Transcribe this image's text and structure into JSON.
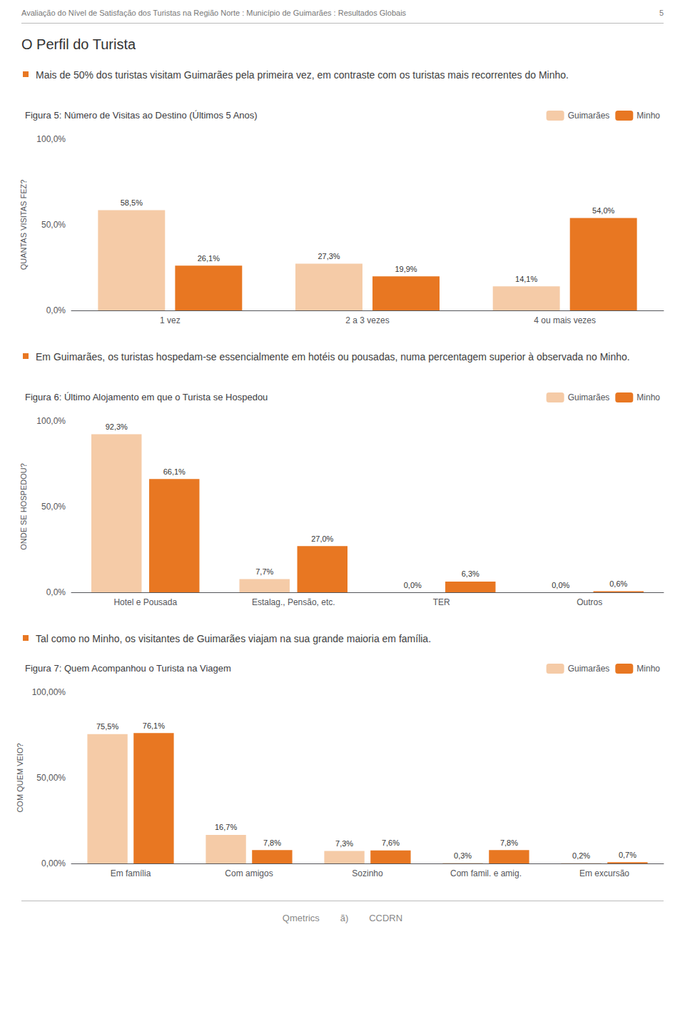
{
  "chart_data": [
    {
      "type": "bar",
      "title": "Figura 5: Número de Visitas ao Destino (Últimos 5 Anos)",
      "ylabel": "QUANTAS VISITAS FEZ?",
      "annotations": [
        "Avaliação do Nível de Satisfação dos Turistas na Região Norte : Município de Guimarães : Resultados Globais",
        "5",
        "O Perfil do Turista",
        "Mais de 50% dos turistas visitam Guimarães pela primeira vez, em contraste com os turistas mais recorrentes do Minho."
      ],
      "categories": [
        "1 vez",
        "2 a 3 vezes",
        "4 ou mais vezes"
      ],
      "series": [
        {
          "name": "Guimarães",
          "color": "#F5CBA7",
          "values": [
            58.5,
            27.3,
            14.1
          ],
          "value_labels": [
            "58,5%",
            "27,3%",
            "14,1%"
          ]
        },
        {
          "name": "Minho",
          "color": "#E87722",
          "values": [
            26.1,
            19.9,
            54.0
          ],
          "value_labels": [
            "26,1%",
            "19,9%",
            "54,0%"
          ]
        }
      ],
      "ylim": [
        0,
        100
      ],
      "yticks": [
        {
          "value": 0,
          "label": "0,0%"
        },
        {
          "value": 50,
          "label": "50,0%"
        },
        {
          "value": 100,
          "label": "100,0%"
        }
      ],
      "data_labels": true,
      "legend": "upper right",
      "grid": false
    },
    {
      "type": "bar",
      "title": "Figura 6: Último Alojamento em que o Turista se Hospedou",
      "ylabel": "ONDE SE HOSPEDOU?",
      "annotations": [
        "Em Guimarães, os turistas hospedam-se essencialmente em hotéis ou pousadas, numa percentagem superior à observada no Minho."
      ],
      "categories": [
        "Hotel e Pousada",
        "Estalag., Pensão, etc.",
        "TER",
        "Outros"
      ],
      "series": [
        {
          "name": "Guimarães",
          "color": "#F5CBA7",
          "values": [
            92.3,
            7.7,
            0.0,
            0.0
          ],
          "value_labels": [
            "92,3%",
            "7,7%",
            "0,0%",
            "0,0%"
          ]
        },
        {
          "name": "Minho",
          "color": "#E87722",
          "values": [
            66.1,
            27.0,
            6.3,
            0.6
          ],
          "value_labels": [
            "66,1%",
            "27,0%",
            "6,3%",
            "0,6%"
          ]
        }
      ],
      "ylim": [
        0,
        100
      ],
      "yticks": [
        {
          "value": 0,
          "label": "0,0%"
        },
        {
          "value": 50,
          "label": "50,0%"
        },
        {
          "value": 100,
          "label": "100,0%"
        }
      ],
      "data_labels": true,
      "legend": "upper right",
      "grid": false
    },
    {
      "type": "bar",
      "title": "Figura 7: Quem Acompanhou o Turista na Viagem",
      "ylabel": "COM QUEM VEIO?",
      "annotations": [
        "Tal como no Minho, os visitantes de Guimarães viajam na sua grande maioria em família.",
        "Qmetrics        ã)        CCDRN"
      ],
      "categories": [
        "Em família",
        "Com amigos",
        "Sozinho",
        "Com famil. e amig.",
        "Em excursão"
      ],
      "series": [
        {
          "name": "Guimarães",
          "color": "#F5CBA7",
          "values": [
            75.5,
            16.7,
            7.3,
            0.3,
            0.2
          ],
          "value_labels": [
            "75,5%",
            "16,7%",
            "7,3%",
            "0,3%",
            "0,2%"
          ]
        },
        {
          "name": "Minho",
          "color": "#E87722",
          "values": [
            76.1,
            7.8,
            7.6,
            7.8,
            0.7
          ],
          "value_labels": [
            "76,1%",
            "7,8%",
            "7,6%",
            "7,8%",
            "0,7%"
          ]
        }
      ],
      "ylim": [
        0,
        100
      ],
      "yticks": [
        {
          "value": 0,
          "label": "0,00%"
        },
        {
          "value": 50,
          "label": "50,00%"
        },
        {
          "value": 100,
          "label": "100,00%"
        }
      ],
      "data_labels": true,
      "legend": "upper right",
      "grid": false
    }
  ]
}
